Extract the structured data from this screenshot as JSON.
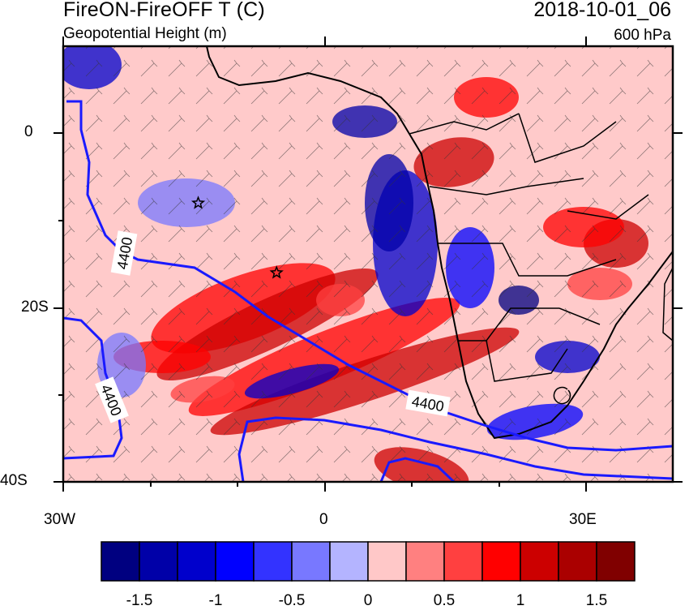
{
  "title": "FireON-FireOFF T (C)",
  "subtitle": "Geopotential Height (m)",
  "datetime": "2018-10-01_06",
  "level": "600 hPa",
  "axes": {
    "lat_labels": [
      "0",
      "20S",
      "40S"
    ],
    "lon_labels": [
      "30W",
      "0",
      "30E"
    ]
  },
  "contours": {
    "label": "4400",
    "color": "#1a1aff"
  },
  "colorbar": {
    "colors": [
      "#000080",
      "#0000a8",
      "#0000cc",
      "#0000ff",
      "#3333ff",
      "#7878ff",
      "#b4b4ff",
      "#ffc8c8",
      "#ff8080",
      "#ff4040",
      "#ff0000",
      "#cc0000",
      "#aa0000",
      "#800000"
    ],
    "tick_labels": [
      "-1.5",
      "-1",
      "-0.5",
      "0",
      "0.5",
      "1",
      "1.5"
    ]
  },
  "markers": [
    {
      "name": "star",
      "lon": -14.5,
      "lat": -8
    },
    {
      "name": "star",
      "lon": -5.5,
      "lat": -16
    }
  ],
  "map_data": {
    "type": "filled-contour-map",
    "variable": "T difference",
    "units": "C",
    "lon_range": [
      -30,
      40
    ],
    "lat_range": [
      -40,
      10
    ],
    "overlay": [
      "geopotential height contours",
      "wind barbs",
      "country borders"
    ]
  }
}
